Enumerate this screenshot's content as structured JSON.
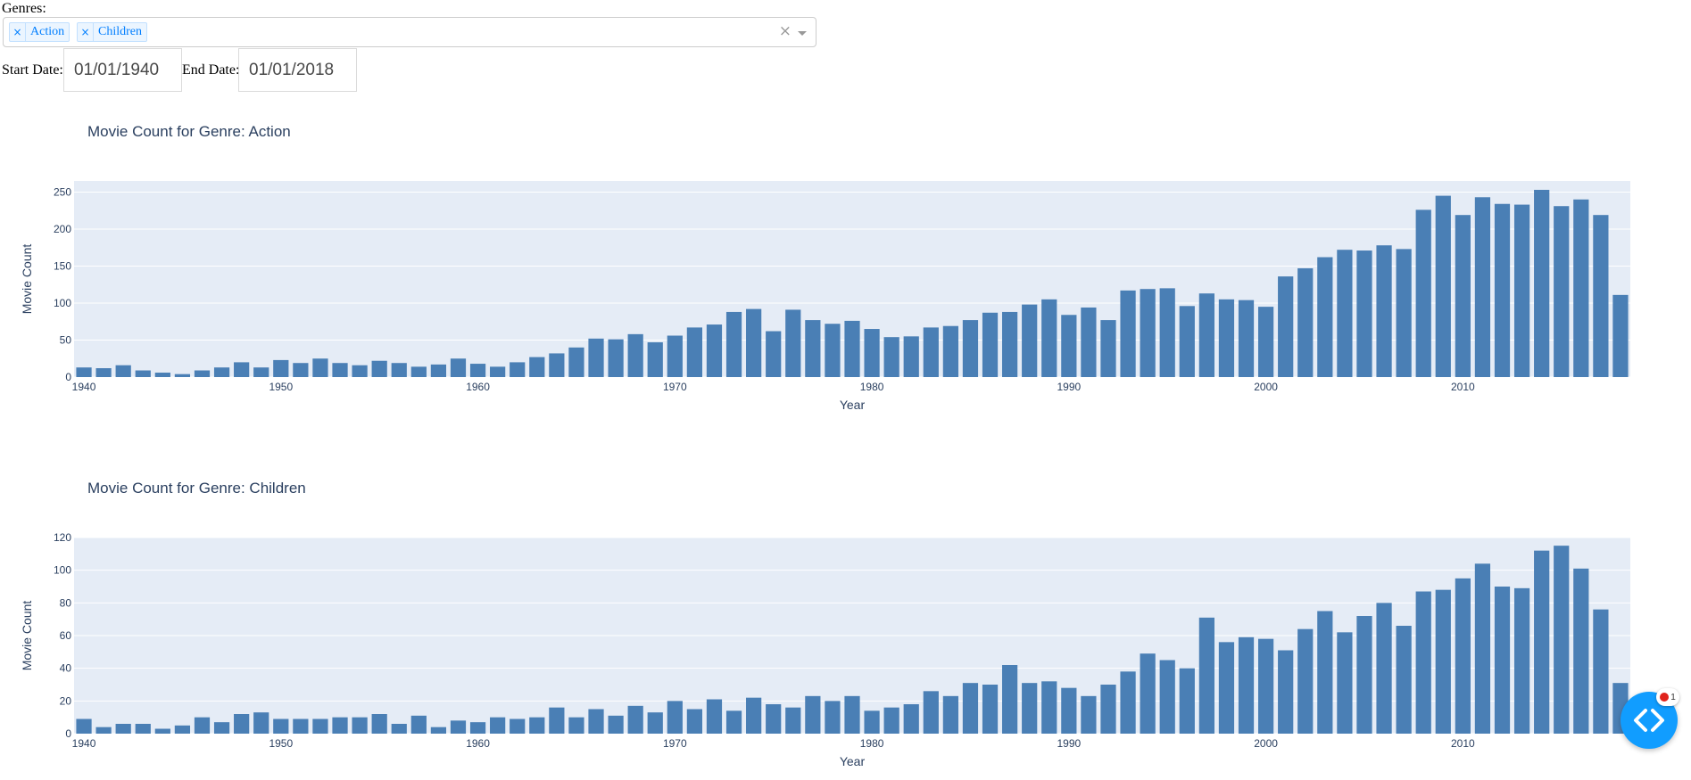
{
  "filters": {
    "genres_label": "Genres:",
    "selected_genres": [
      "Action",
      "Children"
    ],
    "remove_symbol": "×",
    "clear_symbol": "×",
    "start_date_label": "Start Date:",
    "start_date": "01/01/1940",
    "end_date_label": "End Date:",
    "end_date": "01/01/2018"
  },
  "debug_button": {
    "badge_count": "1",
    "icon": "code-brackets-icon"
  },
  "colors": {
    "bar": "#4a7fb5",
    "plot_bg": "#e5ecf6",
    "text": "#2a3f5f",
    "accent": "#119dff",
    "badge": "#e0231c"
  },
  "chart_data": [
    {
      "type": "bar",
      "title": "Movie Count for Genre: Action",
      "xlabel": "Year",
      "ylabel": "Movie Count",
      "x_start": 1940,
      "xlim": [
        1939.5,
        2018.5
      ],
      "x_ticks": [
        1940,
        1950,
        1960,
        1970,
        1980,
        1990,
        2000,
        2010
      ],
      "ylim": [
        0,
        265
      ],
      "y_ticks": [
        0,
        50,
        100,
        150,
        200,
        250
      ],
      "grid": true,
      "values": [
        13,
        12,
        16,
        9,
        6,
        4,
        9,
        13,
        20,
        13,
        23,
        19,
        25,
        19,
        16,
        22,
        19,
        14,
        17,
        25,
        18,
        14,
        20,
        27,
        32,
        40,
        52,
        51,
        58,
        47,
        56,
        67,
        71,
        88,
        92,
        62,
        91,
        77,
        72,
        76,
        65,
        54,
        55,
        67,
        69,
        77,
        87,
        88,
        98,
        105,
        84,
        94,
        77,
        117,
        119,
        120,
        96,
        113,
        105,
        104,
        95,
        136,
        147,
        162,
        172,
        171,
        178,
        173,
        226,
        245,
        219,
        243,
        234,
        233,
        253,
        231,
        240,
        219,
        111
      ]
    },
    {
      "type": "bar",
      "title": "Movie Count for Genre: Children",
      "xlabel": "Year",
      "ylabel": "Movie Count",
      "x_start": 1940,
      "xlim": [
        1939.5,
        2018.5
      ],
      "x_ticks": [
        1940,
        1950,
        1960,
        1970,
        1980,
        1990,
        2000,
        2010
      ],
      "ylim": [
        0,
        120
      ],
      "y_ticks": [
        0,
        20,
        40,
        60,
        80,
        100,
        120
      ],
      "grid": true,
      "values": [
        9,
        4,
        6,
        6,
        3,
        5,
        10,
        7,
        12,
        13,
        9,
        9,
        9,
        10,
        10,
        12,
        6,
        11,
        4,
        8,
        7,
        10,
        9,
        10,
        16,
        10,
        15,
        11,
        17,
        13,
        20,
        15,
        21,
        14,
        22,
        18,
        16,
        23,
        20,
        23,
        14,
        16,
        18,
        26,
        23,
        31,
        30,
        42,
        31,
        32,
        28,
        23,
        30,
        38,
        49,
        45,
        40,
        71,
        56,
        59,
        58,
        51,
        64,
        75,
        62,
        72,
        80,
        66,
        87,
        88,
        95,
        104,
        90,
        89,
        112,
        115,
        101,
        76,
        31
      ]
    }
  ]
}
